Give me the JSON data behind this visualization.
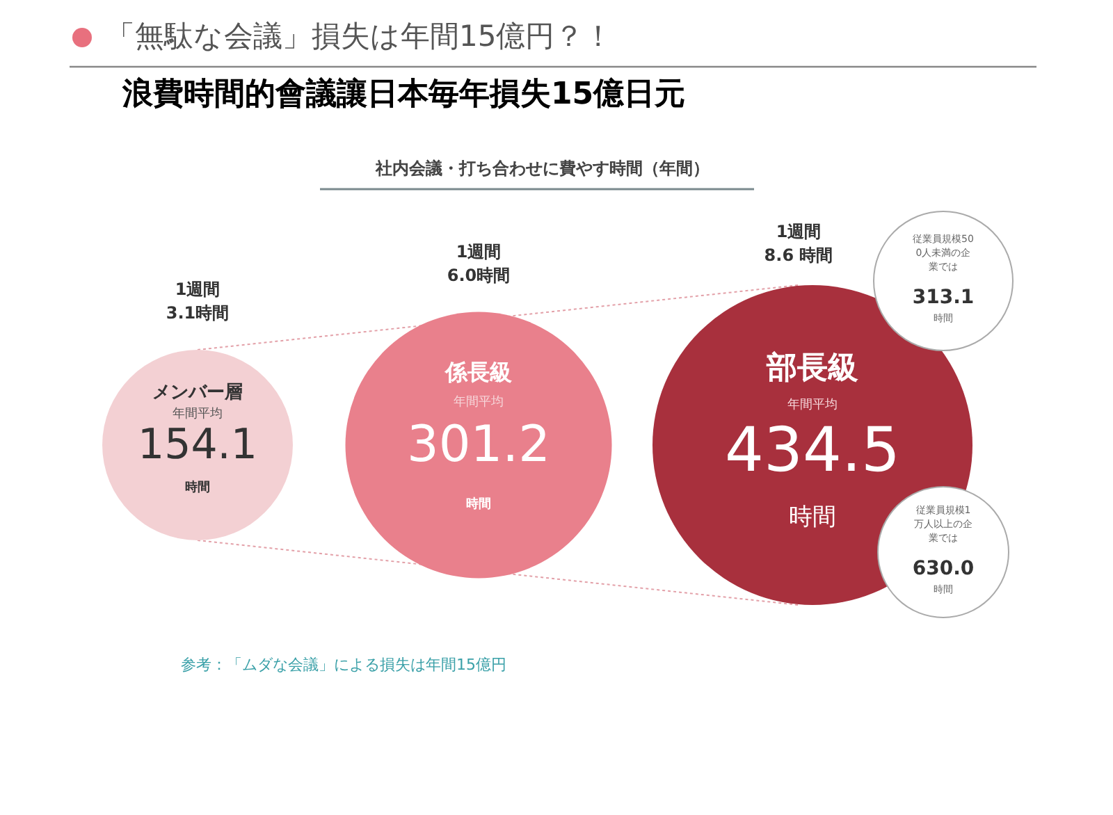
{
  "chart_data": {
    "type": "other",
    "title": "「無駄な会議」損失は年間15億円？！",
    "subtitle": "浪費時間的會議讓日本毎年損失15億日元",
    "categories": [
      "メンバー層",
      "係長級",
      "部長級"
    ],
    "values": [
      154.1,
      301.2,
      434.5
    ],
    "colors": [
      "#f3d0d3",
      "#e9808c",
      "#a8303d"
    ],
    "data_labels": true,
    "annotations": [
      "社内会議・打ち合わせに費やす時間（年間）",
      "1週間\n3.1時間",
      "1週間\n6.0時間",
      "1週間\n8.6 時間",
      "年間平均",
      "年間平均",
      "年間平均",
      "時間",
      "時間",
      "時間",
      "従業員規模500人未満の企業では",
      "313.1",
      "時間",
      "従業員規模1万人以上の企業では",
      "630.0",
      "時間",
      "参考：「ムダな会議」による損失は年間15億円"
    ]
  }
}
